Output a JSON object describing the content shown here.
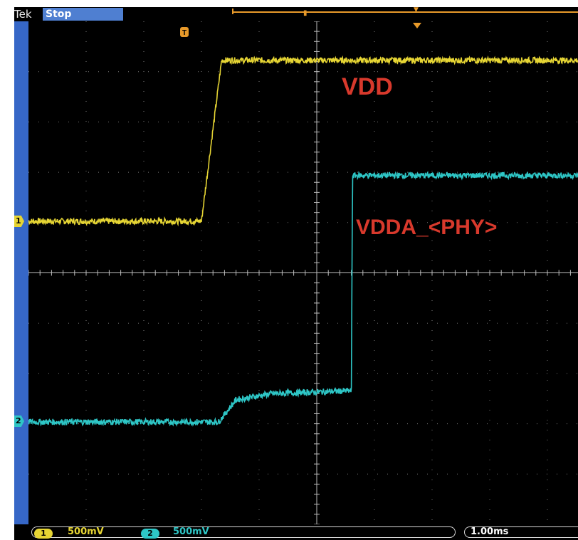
{
  "header": {
    "brand": "Tek",
    "state": "Stop"
  },
  "footer": {
    "ch1_scale": "500mV",
    "ch2_scale": "500mV",
    "timebase": "1.00ms"
  },
  "markers": {
    "trigger": "T",
    "ch1": "1",
    "ch2": "2"
  },
  "colors": {
    "ch1": "#e6d534",
    "ch2": "#2ec6c6",
    "annotation": "#d8392c",
    "grid": "#7a7a7a",
    "trigger": "#e89a2a",
    "strip": "#3667c7"
  },
  "chart_data": {
    "type": "line",
    "title": "",
    "xlabel": "",
    "ylabel": "",
    "x_unit": "ms",
    "y_unit": "V",
    "time_per_div": "1.00ms",
    "volts_per_div": "500mV",
    "xlim": [
      -1.0,
      9.0
    ],
    "grid": true,
    "annotations": [
      {
        "text": "VDD",
        "target_series": "VDD"
      },
      {
        "text": "VDDA_<PHY>",
        "target_series": "VDDA_<PHY>"
      }
    ],
    "series": [
      {
        "name": "VDD",
        "channel": "1",
        "color_key": "ch1",
        "x": [
          -1.0,
          2.0,
          2.35,
          9.0
        ],
        "y": [
          0.0,
          0.0,
          1.6,
          1.6
        ],
        "noise": 0.03
      },
      {
        "name": "VDDA_<PHY>",
        "channel": "2",
        "color_key": "ch2",
        "x": [
          -1.0,
          2.3,
          2.6,
          3.2,
          4.6,
          4.62,
          9.0
        ],
        "y": [
          0.0,
          0.0,
          0.22,
          0.28,
          0.31,
          2.45,
          2.45
        ],
        "noise": 0.03
      }
    ]
  }
}
